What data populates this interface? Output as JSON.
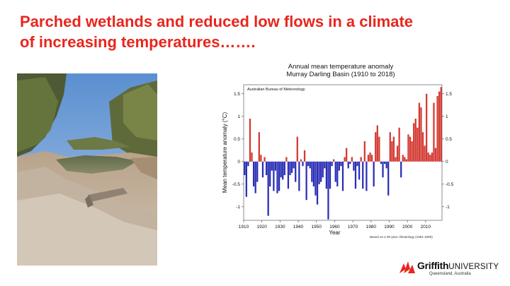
{
  "slide": {
    "title_line1": "Parched wetlands and reduced low flows in a climate",
    "title_line2": "of increasing temperatures……."
  },
  "colors": {
    "title": "#e8261e",
    "positive_bar": "#d43a32",
    "negative_bar": "#2b2fb5",
    "logo_red": "#e8261e"
  },
  "logo": {
    "name_bold": "Griffith",
    "name_rest": "UNIVERSITY",
    "subtitle": "Queensland, Australia"
  },
  "chart_data": {
    "type": "bar",
    "title": "Annual mean temperature anomaly",
    "subtitle": "Murray Darling Basin (1910 to 2018)",
    "source_label": "Australian Bureau of Meteorology",
    "xlabel": "Year",
    "ylabel": "Mean temperature anomaly (°C)",
    "footnote": "Based on a 30-year climatology (1961-1990)",
    "xlim": [
      1910,
      2019
    ],
    "ylim": [
      -1.3,
      1.7
    ],
    "x_ticks": [
      1910,
      1920,
      1930,
      1940,
      1950,
      1960,
      1970,
      1980,
      1990,
      2000,
      2010
    ],
    "y_ticks_left": [
      "1.5",
      "1",
      "0.5",
      "0",
      "-0.5",
      "-1"
    ],
    "y_ticks_right": [
      "1.5",
      "1",
      "0.5",
      "0",
      "-0.5",
      "-1"
    ],
    "y_tick_values": [
      1.5,
      1,
      0.5,
      0,
      -0.5,
      -1
    ],
    "grid": false,
    "start_year": 1910,
    "values": [
      -0.3,
      -0.78,
      -0.1,
      0.95,
      0.2,
      -0.55,
      -0.7,
      -0.45,
      0.65,
      0.15,
      -0.35,
      0.1,
      -0.3,
      -1.2,
      -0.55,
      -0.2,
      -0.65,
      -0.2,
      -0.7,
      -0.65,
      -0.35,
      -0.4,
      -0.3,
      0.1,
      -0.6,
      -0.3,
      -0.25,
      -0.15,
      -0.45,
      0.55,
      -0.65,
      0.05,
      -0.1,
      0.25,
      -0.85,
      -0.1,
      -0.15,
      -0.45,
      -0.55,
      -0.75,
      -0.95,
      -0.5,
      -0.45,
      -0.35,
      -0.15,
      -0.6,
      -1.28,
      -0.6,
      -0.1,
      0.05,
      -0.45,
      -0.55,
      -0.2,
      -0.1,
      -0.65,
      0.1,
      0.3,
      -0.15,
      -0.05,
      0.1,
      -0.2,
      -0.6,
      -0.1,
      -0.4,
      0.1,
      -0.6,
      0.45,
      -0.65,
      0.15,
      0.2,
      0.15,
      -0.55,
      0.65,
      0.8,
      0.55,
      -0.05,
      -0.35,
      -0.05,
      -0.15,
      -0.75,
      0.65,
      0.45,
      0.55,
      0.1,
      0.35,
      0.75,
      -0.35,
      0.15,
      0.1,
      0.05,
      0.6,
      0.55,
      0.45,
      0.85,
      0.95,
      0.75,
      1.3,
      1.2,
      0.65,
      0.35,
      1.5,
      0.2,
      0.15,
      0.2,
      1.3,
      0.3,
      1.45,
      1.55,
      1.65
    ]
  }
}
